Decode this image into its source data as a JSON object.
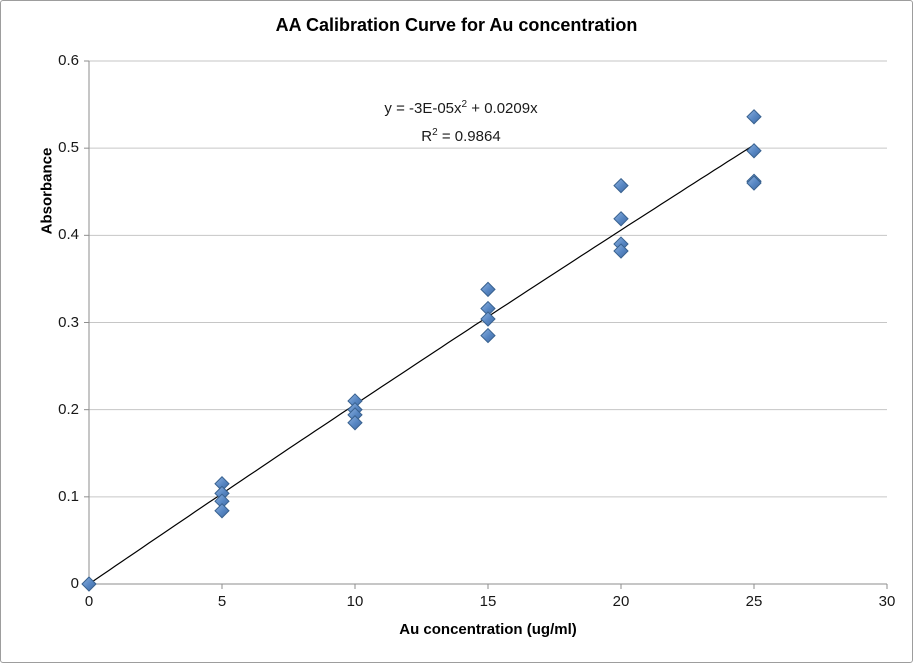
{
  "chart": {
    "title": "AA Calibration Curve for Au concentration",
    "equation": {
      "line1_pre": "y = -3E-05x",
      "line1_sup": "2",
      "line1_post": " + 0.0209x",
      "line2_pre": "R",
      "line2_sup": "2",
      "line2_post": " = 0.9864"
    }
  },
  "colors": {
    "gridline": "#c6c6c6",
    "axis": "#8e8e8e",
    "tick": "#8e8e8e",
    "trendline": "#000000",
    "marker_fill_light": "#8fb2e0",
    "marker_fill_mid": "#5585c2",
    "marker_fill_dark": "#44699d",
    "marker_stroke": "#38618f",
    "text": "#000000"
  },
  "chart_data": {
    "type": "scatter",
    "title": "AA Calibration Curve for Au concentration",
    "xlabel": "Au concentration (ug/ml)",
    "ylabel": "Absorbance",
    "xlim": [
      0,
      30
    ],
    "ylim": [
      0,
      0.6
    ],
    "x_ticks": [
      0,
      5,
      10,
      15,
      20,
      25,
      30
    ],
    "x_tick_labels": [
      "0",
      "5",
      "10",
      "15",
      "20",
      "25",
      "30"
    ],
    "y_ticks": [
      0,
      0.1,
      0.2,
      0.3,
      0.4,
      0.5,
      0.6
    ],
    "y_tick_labels": [
      "0",
      "0.1",
      "0.2",
      "0.3",
      "0.4",
      "0.5",
      "0.6"
    ],
    "grid": "horizontal-only",
    "legend": "none",
    "marker": {
      "shape": "diamond",
      "color": "#4f81bd"
    },
    "points": [
      {
        "x": 0,
        "y": 0.0
      },
      {
        "x": 5,
        "y": 0.115
      },
      {
        "x": 5,
        "y": 0.104
      },
      {
        "x": 5,
        "y": 0.095
      },
      {
        "x": 5,
        "y": 0.084
      },
      {
        "x": 10,
        "y": 0.21
      },
      {
        "x": 10,
        "y": 0.2
      },
      {
        "x": 10,
        "y": 0.194
      },
      {
        "x": 10,
        "y": 0.185
      },
      {
        "x": 15,
        "y": 0.338
      },
      {
        "x": 15,
        "y": 0.316
      },
      {
        "x": 15,
        "y": 0.304
      },
      {
        "x": 15,
        "y": 0.285
      },
      {
        "x": 20,
        "y": 0.457
      },
      {
        "x": 20,
        "y": 0.419
      },
      {
        "x": 20,
        "y": 0.39
      },
      {
        "x": 20,
        "y": 0.382
      },
      {
        "x": 25,
        "y": 0.536
      },
      {
        "x": 25,
        "y": 0.497
      },
      {
        "x": 25,
        "y": 0.462
      },
      {
        "x": 25,
        "y": 0.46
      }
    ],
    "trendline": {
      "type": "polynomial-order-2",
      "equation": "y = -3E-05x^2 + 0.0209x",
      "r_squared": 0.9864,
      "coefficients": {
        "a": -3e-05,
        "b": 0.0209,
        "c": 0
      },
      "x_range": [
        0,
        25.1
      ],
      "color": "#000000"
    }
  }
}
